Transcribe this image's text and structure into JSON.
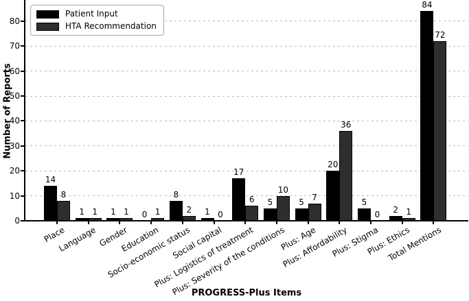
{
  "figure": {
    "background": "#ffffff"
  },
  "chart_data": {
    "type": "bar",
    "title": "",
    "xlabel": "PROGRESS-Plus Items",
    "ylabel": "Number of Reports",
    "categories": [
      "Place",
      "Language",
      "Gender",
      "Education",
      "Socio-economic status",
      "Social capital",
      "Plus: Logistics of treatment",
      "Plus: Severity of the conditions",
      "Plus: Age",
      "Plus: Affordability",
      "Plus: Stigma",
      "Plus: Ethics",
      "Total Mentions"
    ],
    "series": [
      {
        "name": "Patient Input",
        "color": "#000000",
        "values": [
          14,
          1,
          1,
          0,
          8,
          1,
          17,
          5,
          5,
          20,
          5,
          2,
          84
        ]
      },
      {
        "name": "HTA Recommendation",
        "color": "#2e2e2e",
        "values": [
          8,
          1,
          1,
          1,
          2,
          0,
          6,
          10,
          7,
          36,
          0,
          1,
          72
        ]
      }
    ],
    "ylim": [
      0,
      88.5
    ],
    "yticks": [
      0,
      10,
      20,
      30,
      40,
      50,
      60,
      70,
      80
    ],
    "grid": "horizontal-dashed",
    "gridline_color": "#b9b9b9",
    "bar_value_labels": true,
    "legend_position": "upper-left",
    "x_tick_rotation_deg": 30
  }
}
